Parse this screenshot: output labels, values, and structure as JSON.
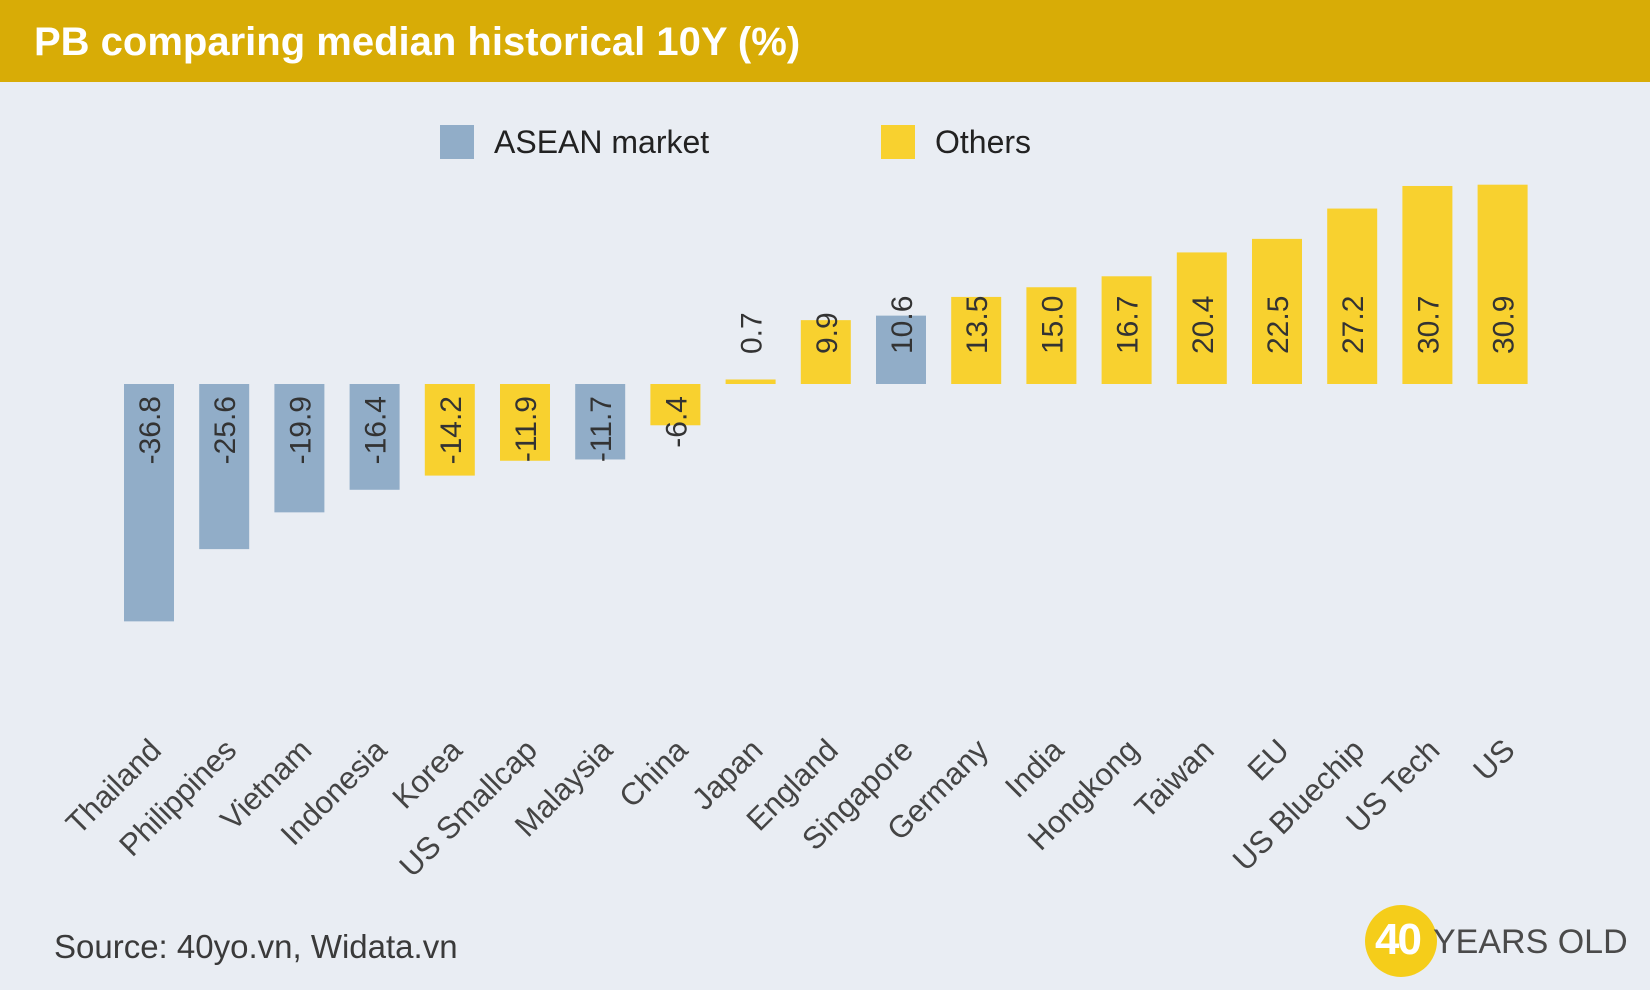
{
  "header": {
    "title": "PB comparing median historical 10Y (%)"
  },
  "legend": {
    "asean_label": "ASEAN market",
    "others_label": "Others"
  },
  "colors": {
    "asean": "#91adc8",
    "others": "#f8d12f",
    "title_bg": "#d8ac06",
    "background": "#e9edf3"
  },
  "footer": {
    "source": "Source: 40yo.vn, Widata.vn"
  },
  "brand": {
    "number": "40",
    "text": "YEARS OLD"
  },
  "chart_data": {
    "type": "bar",
    "title": "PB comparing median historical 10Y (%)",
    "categories": [
      "Thailand",
      "Philippines",
      "Vietnam",
      "Indonesia",
      "Korea",
      "US Smallcap",
      "Malaysia",
      "China",
      "Japan",
      "England",
      "Singapore",
      "Germany",
      "India",
      "Hongkong",
      "Taiwan",
      "EU",
      "US Bluechip",
      "US Tech",
      "US"
    ],
    "values": [
      -36.8,
      -25.6,
      -19.9,
      -16.4,
      -14.2,
      -11.9,
      -11.7,
      -6.4,
      0.7,
      9.9,
      10.6,
      13.5,
      15.0,
      16.7,
      20.4,
      22.5,
      27.2,
      30.7,
      30.9
    ],
    "labels": [
      "-36.8",
      "-25.6",
      "-19.9",
      "-16.4",
      "-14.2",
      "-11.9",
      "-11.7",
      "-6.4",
      "0.7",
      "9.9",
      "10.6",
      "13.5",
      "15.0",
      "16.7",
      "20.4",
      "22.5",
      "27.2",
      "30.7",
      "30.9"
    ],
    "groups": [
      "ASEAN market",
      "ASEAN market",
      "ASEAN market",
      "ASEAN market",
      "Others",
      "Others",
      "ASEAN market",
      "Others",
      "Others",
      "Others",
      "ASEAN market",
      "Others",
      "Others",
      "Others",
      "Others",
      "Others",
      "Others",
      "Others",
      "Others"
    ],
    "series": [
      {
        "name": "ASEAN market"
      },
      {
        "name": "Others"
      }
    ],
    "ylim": [
      -40,
      31
    ],
    "grid": false,
    "legend_position": "top"
  }
}
